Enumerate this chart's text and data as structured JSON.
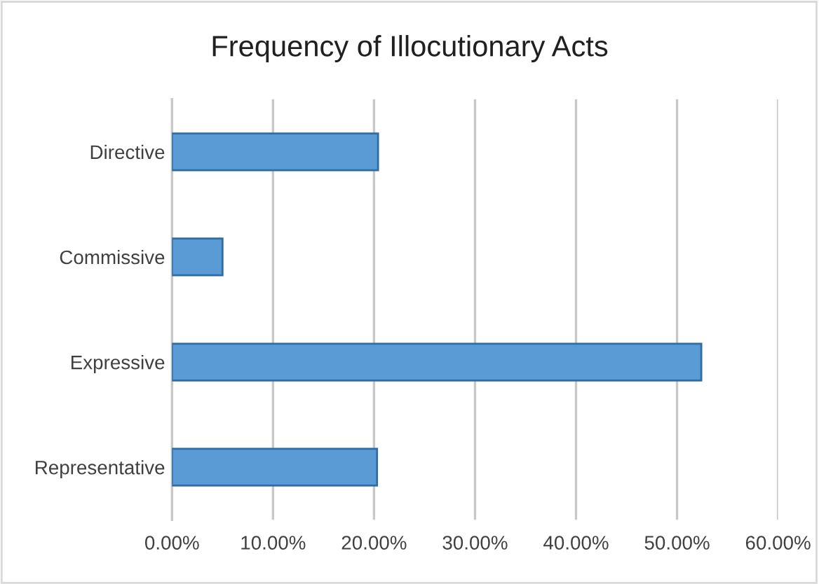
{
  "chart_data": {
    "type": "bar",
    "orientation": "horizontal",
    "title": "Frequency of Illocutionary Acts",
    "categories": [
      "Directive",
      "Commissive",
      "Expressive",
      "Representative"
    ],
    "values": [
      20.4,
      5.0,
      52.4,
      20.3
    ],
    "color": "#5b9bd5",
    "xlim": [
      0,
      60
    ],
    "xticks": [
      {
        "value": 0,
        "label": "0.00%"
      },
      {
        "value": 10,
        "label": "10.00%"
      },
      {
        "value": 20,
        "label": "20.00%"
      },
      {
        "value": 30,
        "label": "30.00%"
      },
      {
        "value": 40,
        "label": "40.00%"
      },
      {
        "value": 50,
        "label": "50.00%"
      },
      {
        "value": 60,
        "label": "60.00%"
      }
    ],
    "grid": "x",
    "legend": false
  }
}
